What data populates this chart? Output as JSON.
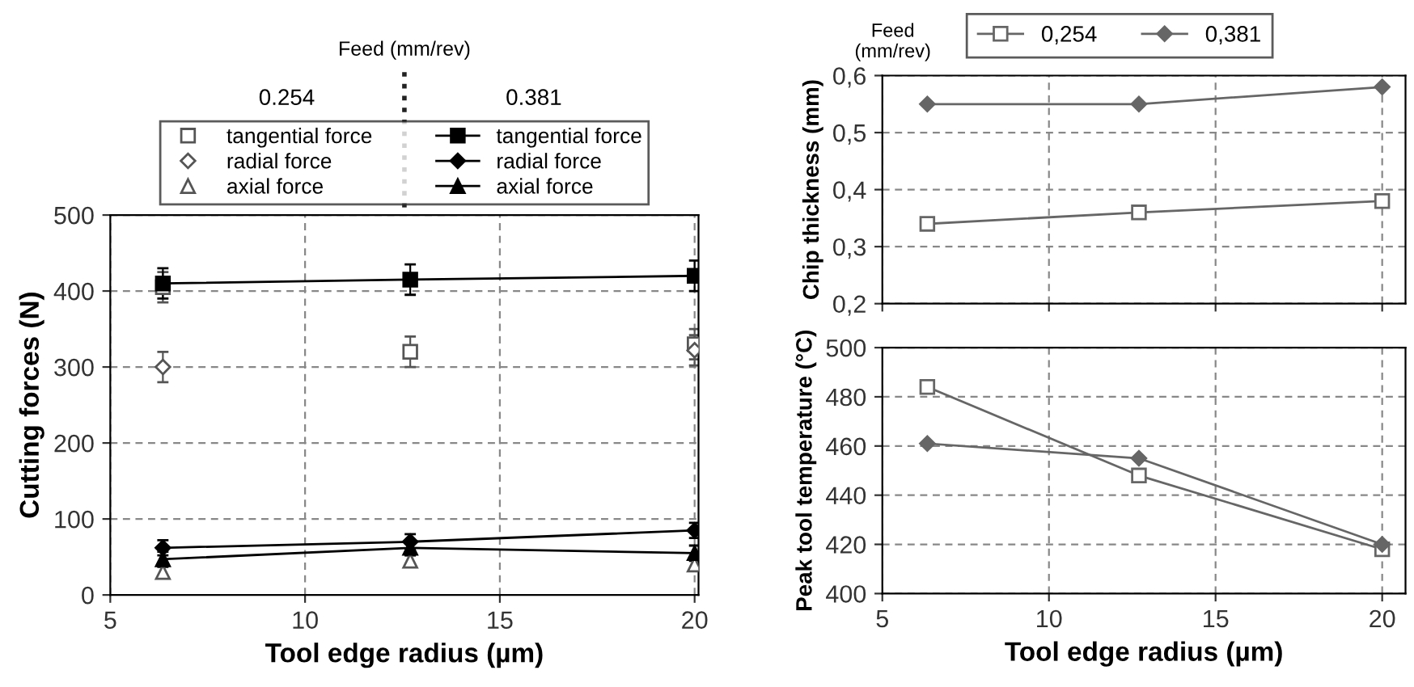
{
  "chart_data": [
    {
      "type": "line",
      "xlabel": "Tool edge radius (µm)",
      "ylabel": "Cutting forces (N)",
      "legend_title": "Feed (mm/rev)",
      "annotations": [
        "0.254",
        "0.381"
      ],
      "x": [
        6.35,
        12.7,
        20
      ],
      "xlim": [
        5,
        20.1
      ],
      "xticks": [
        5,
        10,
        15,
        20
      ],
      "ylim": [
        0,
        500
      ],
      "yticks": [
        0,
        100,
        200,
        300,
        400,
        500
      ],
      "grid": true,
      "legend": "top",
      "series": [
        {
          "name": "tangential force",
          "type": "scatter",
          "marker": "square",
          "color": "#555555",
          "values": [
            405,
            320,
            330
          ],
          "errors": [
            20,
            20,
            20
          ]
        },
        {
          "name": "radial force",
          "type": "scatter",
          "marker": "diamond",
          "color": "#555555",
          "values": [
            300,
            null,
            322
          ],
          "errors": [
            20,
            null,
            20
          ]
        },
        {
          "name": "axial force",
          "type": "scatter",
          "marker": "triangle",
          "color": "#555555",
          "values": [
            30,
            45,
            40
          ],
          "errors": [
            8,
            8,
            8
          ]
        },
        {
          "name": "tangential force",
          "type": "line",
          "marker": "square",
          "color": "#000000",
          "values": [
            410,
            415,
            420
          ],
          "errors": [
            20,
            20,
            20
          ]
        },
        {
          "name": "radial force",
          "type": "line",
          "marker": "diamond",
          "color": "#000000",
          "values": [
            62,
            70,
            85
          ],
          "errors": [
            10,
            10,
            10
          ]
        },
        {
          "name": "axial force",
          "type": "line",
          "marker": "triangle",
          "color": "#000000",
          "values": [
            47,
            62,
            55
          ],
          "errors": [
            10,
            10,
            10
          ]
        }
      ]
    },
    {
      "type": "line",
      "ylabel": "Chip thickness (mm)",
      "legend_title": "Feed\n(mm/rev)",
      "x": [
        6.35,
        12.7,
        20
      ],
      "xlim": [
        5,
        20.7
      ],
      "xticks": [
        5,
        10,
        15,
        20
      ],
      "tick_labels": "y",
      "ylim": [
        0.2,
        0.6
      ],
      "yticks": [
        {
          "value": 0.2,
          "label": "0,2"
        },
        {
          "value": 0.3,
          "label": "0,3"
        },
        {
          "value": 0.4,
          "label": "0,4"
        },
        {
          "value": 0.5,
          "label": "0,5"
        },
        {
          "value": 0.6,
          "label": "0,6"
        }
      ],
      "grid": true,
      "legend": "top",
      "series": [
        {
          "name": "0,254",
          "marker": "square",
          "color": "#666666",
          "values": [
            0.34,
            0.36,
            0.38
          ]
        },
        {
          "name": "0,381",
          "marker": "diamond",
          "color": "#666666",
          "values": [
            0.55,
            0.55,
            0.58
          ]
        }
      ]
    },
    {
      "type": "line",
      "xlabel": "Tool edge radius (µm)",
      "ylabel": "Peak tool temperature (°C)",
      "x": [
        6.35,
        12.7,
        20
      ],
      "xlim": [
        5,
        20.7
      ],
      "xticks": [
        5,
        10,
        15,
        20
      ],
      "ylim": [
        400,
        500
      ],
      "yticks": [
        400,
        420,
        440,
        460,
        480,
        500
      ],
      "grid": true,
      "series": [
        {
          "marker": "square",
          "color": "#666666",
          "values": [
            484,
            448,
            418
          ]
        },
        {
          "marker": "diamond",
          "color": "#666666",
          "values": [
            461,
            455,
            420
          ]
        }
      ]
    }
  ]
}
